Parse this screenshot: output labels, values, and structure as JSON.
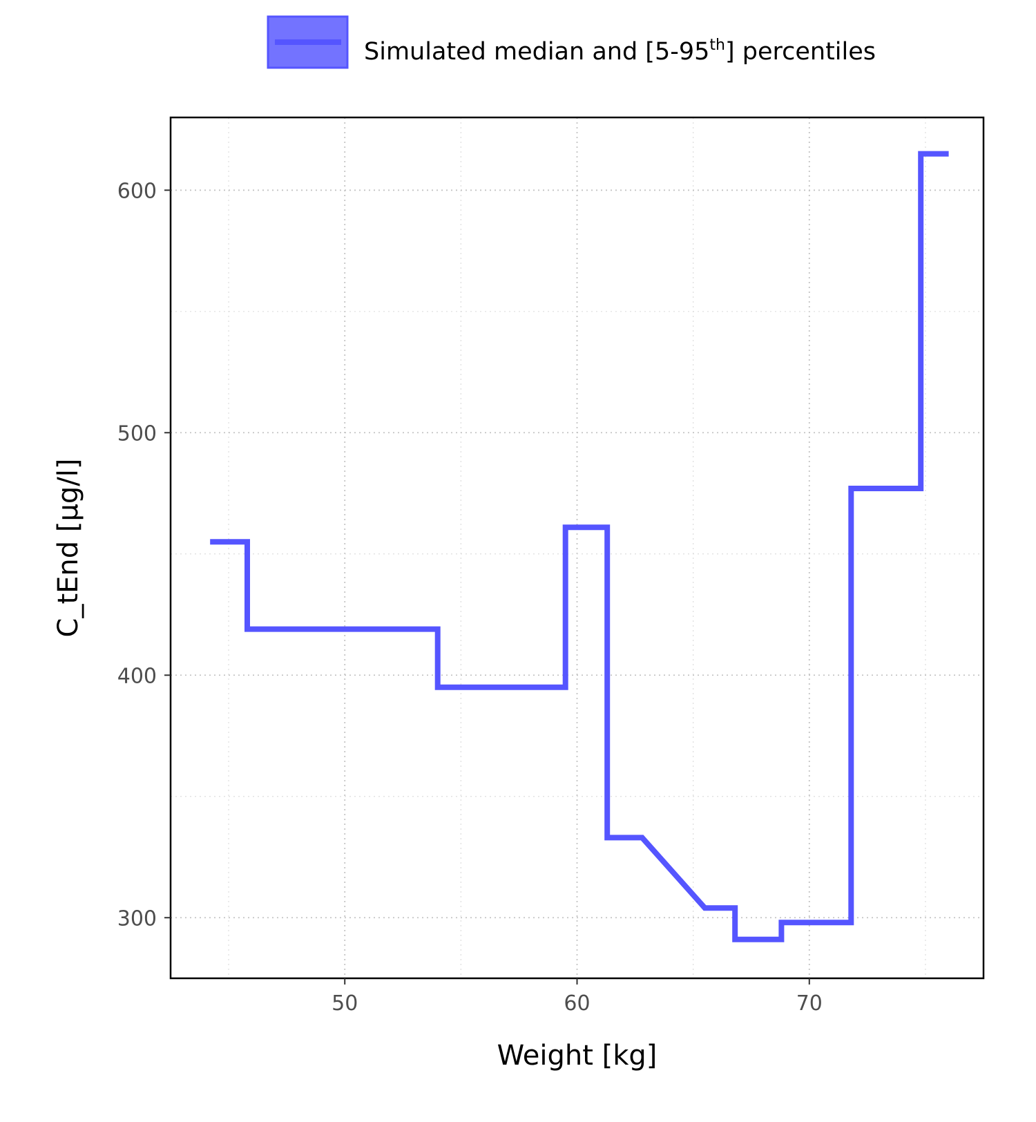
{
  "chart_data": {
    "type": "line",
    "step": true,
    "xlabel": "Weight [kg]",
    "ylabel": "C_tEnd [µg/l]",
    "xlim": [
      42.5,
      77.5
    ],
    "ylim": [
      275,
      630
    ],
    "x_ticks": [
      50,
      60,
      70
    ],
    "y_ticks": [
      300,
      400,
      500,
      600
    ],
    "grid": true,
    "legend": {
      "placement": "top",
      "label_main": "Simulated median and [5-95",
      "label_sup": "th",
      "label_end": "] percentiles"
    },
    "series": [
      {
        "color": "#5555ff",
        "band_color": "#7373ff",
        "x": [
          44.2,
          45.8,
          45.8,
          54.0,
          54.0,
          59.5,
          59.5,
          61.3,
          61.3,
          62.8,
          65.5,
          66.8,
          66.8,
          68.8,
          68.8,
          71.8,
          71.8,
          74.8,
          74.8,
          76.0
        ],
        "y": [
          455,
          455,
          419,
          419,
          395,
          395,
          461,
          461,
          333,
          333,
          304,
          304,
          291,
          291,
          298,
          298,
          477,
          477,
          615,
          615
        ]
      }
    ]
  }
}
